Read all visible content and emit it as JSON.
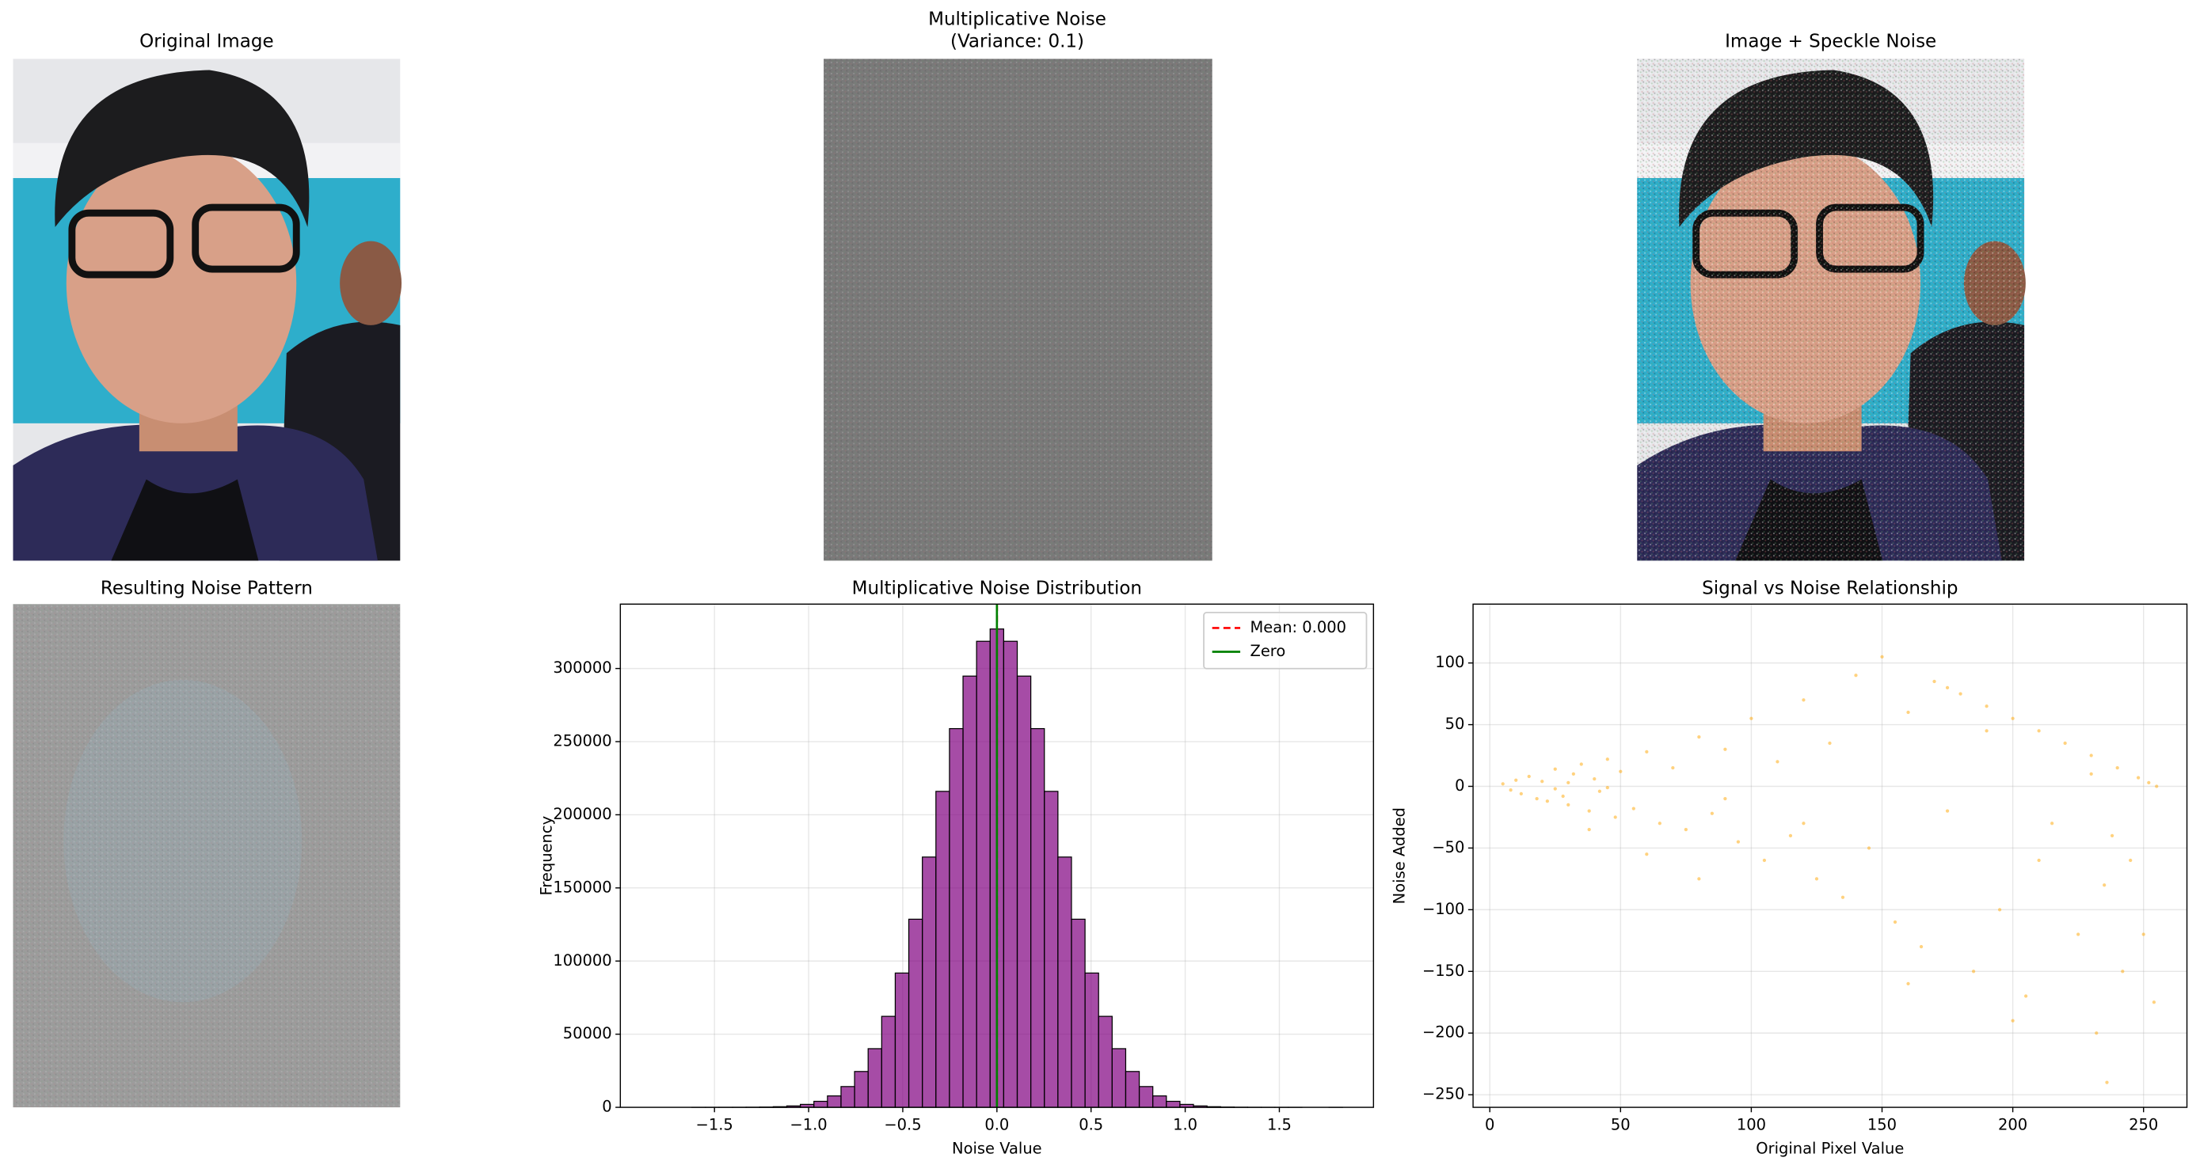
{
  "chart_data": [
    {
      "type": "image",
      "title": "Original Image"
    },
    {
      "type": "image",
      "title": "Multiplicative Noise",
      "subtitle": "(Variance: 0.1)"
    },
    {
      "type": "image",
      "title": "Image + Speckle Noise"
    },
    {
      "type": "image",
      "title": "Resulting Noise Pattern"
    },
    {
      "type": "histogram",
      "title": "Multiplicative Noise Distribution",
      "x_label": "Noise Value",
      "y_label": "Frequency",
      "bins": [
        -1.836,
        -1.764,
        -1.692,
        -1.62,
        -1.548,
        -1.476,
        -1.404,
        -1.332,
        -1.26,
        -1.188,
        -1.116,
        -1.044,
        -0.972,
        -0.9,
        -0.828,
        -0.756,
        -0.684,
        -0.612,
        -0.54,
        -0.468,
        -0.396,
        -0.324,
        -0.252,
        -0.18,
        -0.108,
        -0.036,
        0.036,
        0.108,
        0.18,
        0.252,
        0.324,
        0.396,
        0.468,
        0.54,
        0.612,
        0.684,
        0.756,
        0.828,
        0.9,
        0.972,
        1.044,
        1.116,
        1.188,
        1.26,
        1.332,
        1.404,
        1.476,
        1.548,
        1.62,
        1.692,
        1.764,
        1.836
      ],
      "values": [
        0,
        0,
        0,
        1,
        4,
        10,
        28,
        74,
        180,
        430,
        960,
        2000,
        4100,
        7800,
        14200,
        24500,
        40100,
        62200,
        91800,
        128600,
        171100,
        216000,
        258900,
        294800,
        318600,
        327000,
        318600,
        294800,
        258900,
        216000,
        171100,
        128600,
        91800,
        62200,
        40100,
        24500,
        14200,
        7800,
        4100,
        2000,
        960,
        430,
        180,
        74,
        28,
        10,
        4,
        1,
        0,
        0,
        1
      ],
      "color": "purple",
      "alpha": 0.7,
      "edgecolor": "#000000",
      "vlines": [
        {
          "name": "Mean: 0.000",
          "value": 0,
          "color": "red",
          "style": "dashed"
        },
        {
          "name": "Zero",
          "value": 0,
          "color": "green",
          "style": "solid"
        }
      ],
      "legend": "upper right",
      "grid": true,
      "xlim": [
        -2.0,
        2.0
      ],
      "ylim": [
        0,
        344000
      ],
      "xticks": [
        {
          "value": -1.5,
          "label": "−1.5"
        },
        {
          "value": -1.0,
          "label": "−1.0"
        },
        {
          "value": -0.5,
          "label": "−0.5"
        },
        {
          "value": 0.0,
          "label": "0.0"
        },
        {
          "value": 0.5,
          "label": "0.5"
        },
        {
          "value": 1.0,
          "label": "1.0"
        },
        {
          "value": 1.5,
          "label": "1.5"
        }
      ],
      "yticks": [
        0,
        50000,
        100000,
        150000,
        200000,
        250000,
        300000
      ]
    },
    {
      "type": "scatter",
      "title": "Signal vs Noise Relationship",
      "x_label": "Original Pixel Value",
      "y_label": "Noise Added",
      "color": "orange",
      "alpha": 0.5,
      "grid": true,
      "x": [
        5,
        8,
        10,
        12,
        15,
        18,
        20,
        22,
        25,
        28,
        30,
        32,
        35,
        38,
        40,
        42,
        45,
        48,
        50,
        55,
        60,
        65,
        70,
        75,
        80,
        85,
        90,
        95,
        100,
        105,
        110,
        115,
        120,
        125,
        130,
        135,
        140,
        145,
        150,
        155,
        160,
        165,
        170,
        175,
        180,
        185,
        190,
        195,
        200,
        205,
        210,
        215,
        220,
        225,
        230,
        232,
        235,
        238,
        240,
        242,
        245,
        248,
        250,
        252,
        254,
        255,
        236,
        38,
        60,
        80,
        160,
        175,
        200,
        120,
        90,
        30,
        25,
        45,
        190,
        210,
        230
      ],
      "y": [
        2,
        -3,
        5,
        -6,
        8,
        -10,
        4,
        -12,
        14,
        -8,
        -15,
        10,
        18,
        -20,
        6,
        -4,
        22,
        -25,
        12,
        -18,
        28,
        -30,
        15,
        -35,
        40,
        -22,
        30,
        -45,
        55,
        -60,
        20,
        -40,
        70,
        -75,
        35,
        -90,
        90,
        -50,
        105,
        -110,
        60,
        -130,
        85,
        -20,
        75,
        -150,
        45,
        -100,
        55,
        -170,
        -60,
        -30,
        35,
        -120,
        10,
        -200,
        -80,
        -40,
        15,
        -150,
        -60,
        7,
        -120,
        3,
        -175,
        0,
        -240,
        -35,
        -55,
        -75,
        -160,
        80,
        -190,
        -30,
        -10,
        3,
        -2,
        -1,
        65,
        45,
        25
      ],
      "xlim": [
        -6.4,
        266.6
      ],
      "ylim": [
        -260.2,
        147.7
      ],
      "xticks": [
        0,
        50,
        100,
        150,
        200,
        250
      ],
      "yticks": [
        {
          "value": -250,
          "label": "−250"
        },
        {
          "value": -200,
          "label": "−200"
        },
        {
          "value": -150,
          "label": "−150"
        },
        {
          "value": -100,
          "label": "−100"
        },
        {
          "value": -50,
          "label": "−50"
        },
        0,
        50,
        100
      ]
    }
  ]
}
